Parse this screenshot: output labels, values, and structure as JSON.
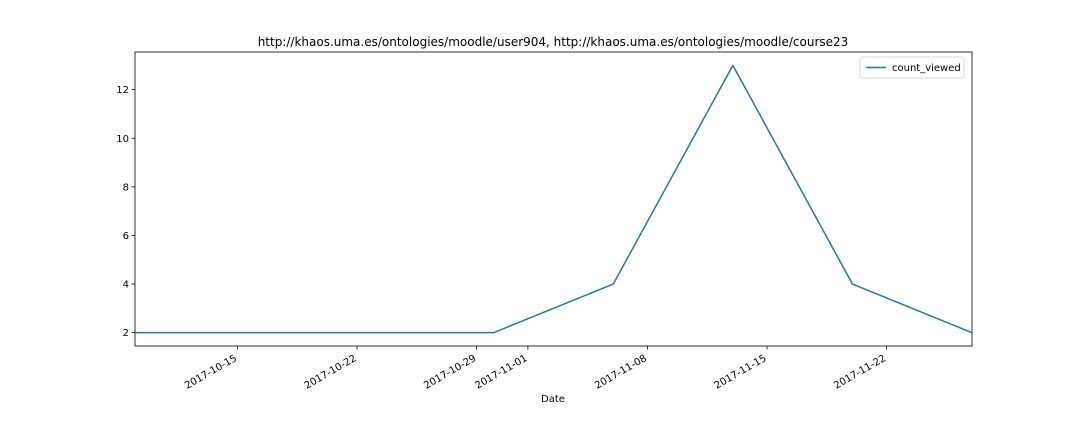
{
  "chart_data": {
    "type": "line",
    "title": "http://khaos.uma.es/ontologies/moodle/user904, http://khaos.uma.es/ontologies/moodle/course23",
    "xlabel": "Date",
    "ylabel": "",
    "x_type": "date",
    "xlim": [
      "2017-10-09",
      "2017-11-27"
    ],
    "ylim": [
      1.45,
      13.55
    ],
    "x_ticks": [
      "2017-10-15",
      "2017-10-22",
      "2017-10-29",
      "2017-11-01",
      "2017-11-08",
      "2017-11-15",
      "2017-11-22"
    ],
    "y_ticks": [
      2,
      4,
      6,
      8,
      10,
      12
    ],
    "series": [
      {
        "name": "count_viewed",
        "color": "#1f77b4",
        "x": [
          "2017-10-09",
          "2017-10-16",
          "2017-10-23",
          "2017-10-30",
          "2017-11-06",
          "2017-11-13",
          "2017-11-20",
          "2017-11-27"
        ],
        "y": [
          2,
          2,
          2,
          2,
          4,
          13,
          4,
          2
        ]
      }
    ],
    "legend": {
      "position": "top-right"
    },
    "grid": false
  }
}
